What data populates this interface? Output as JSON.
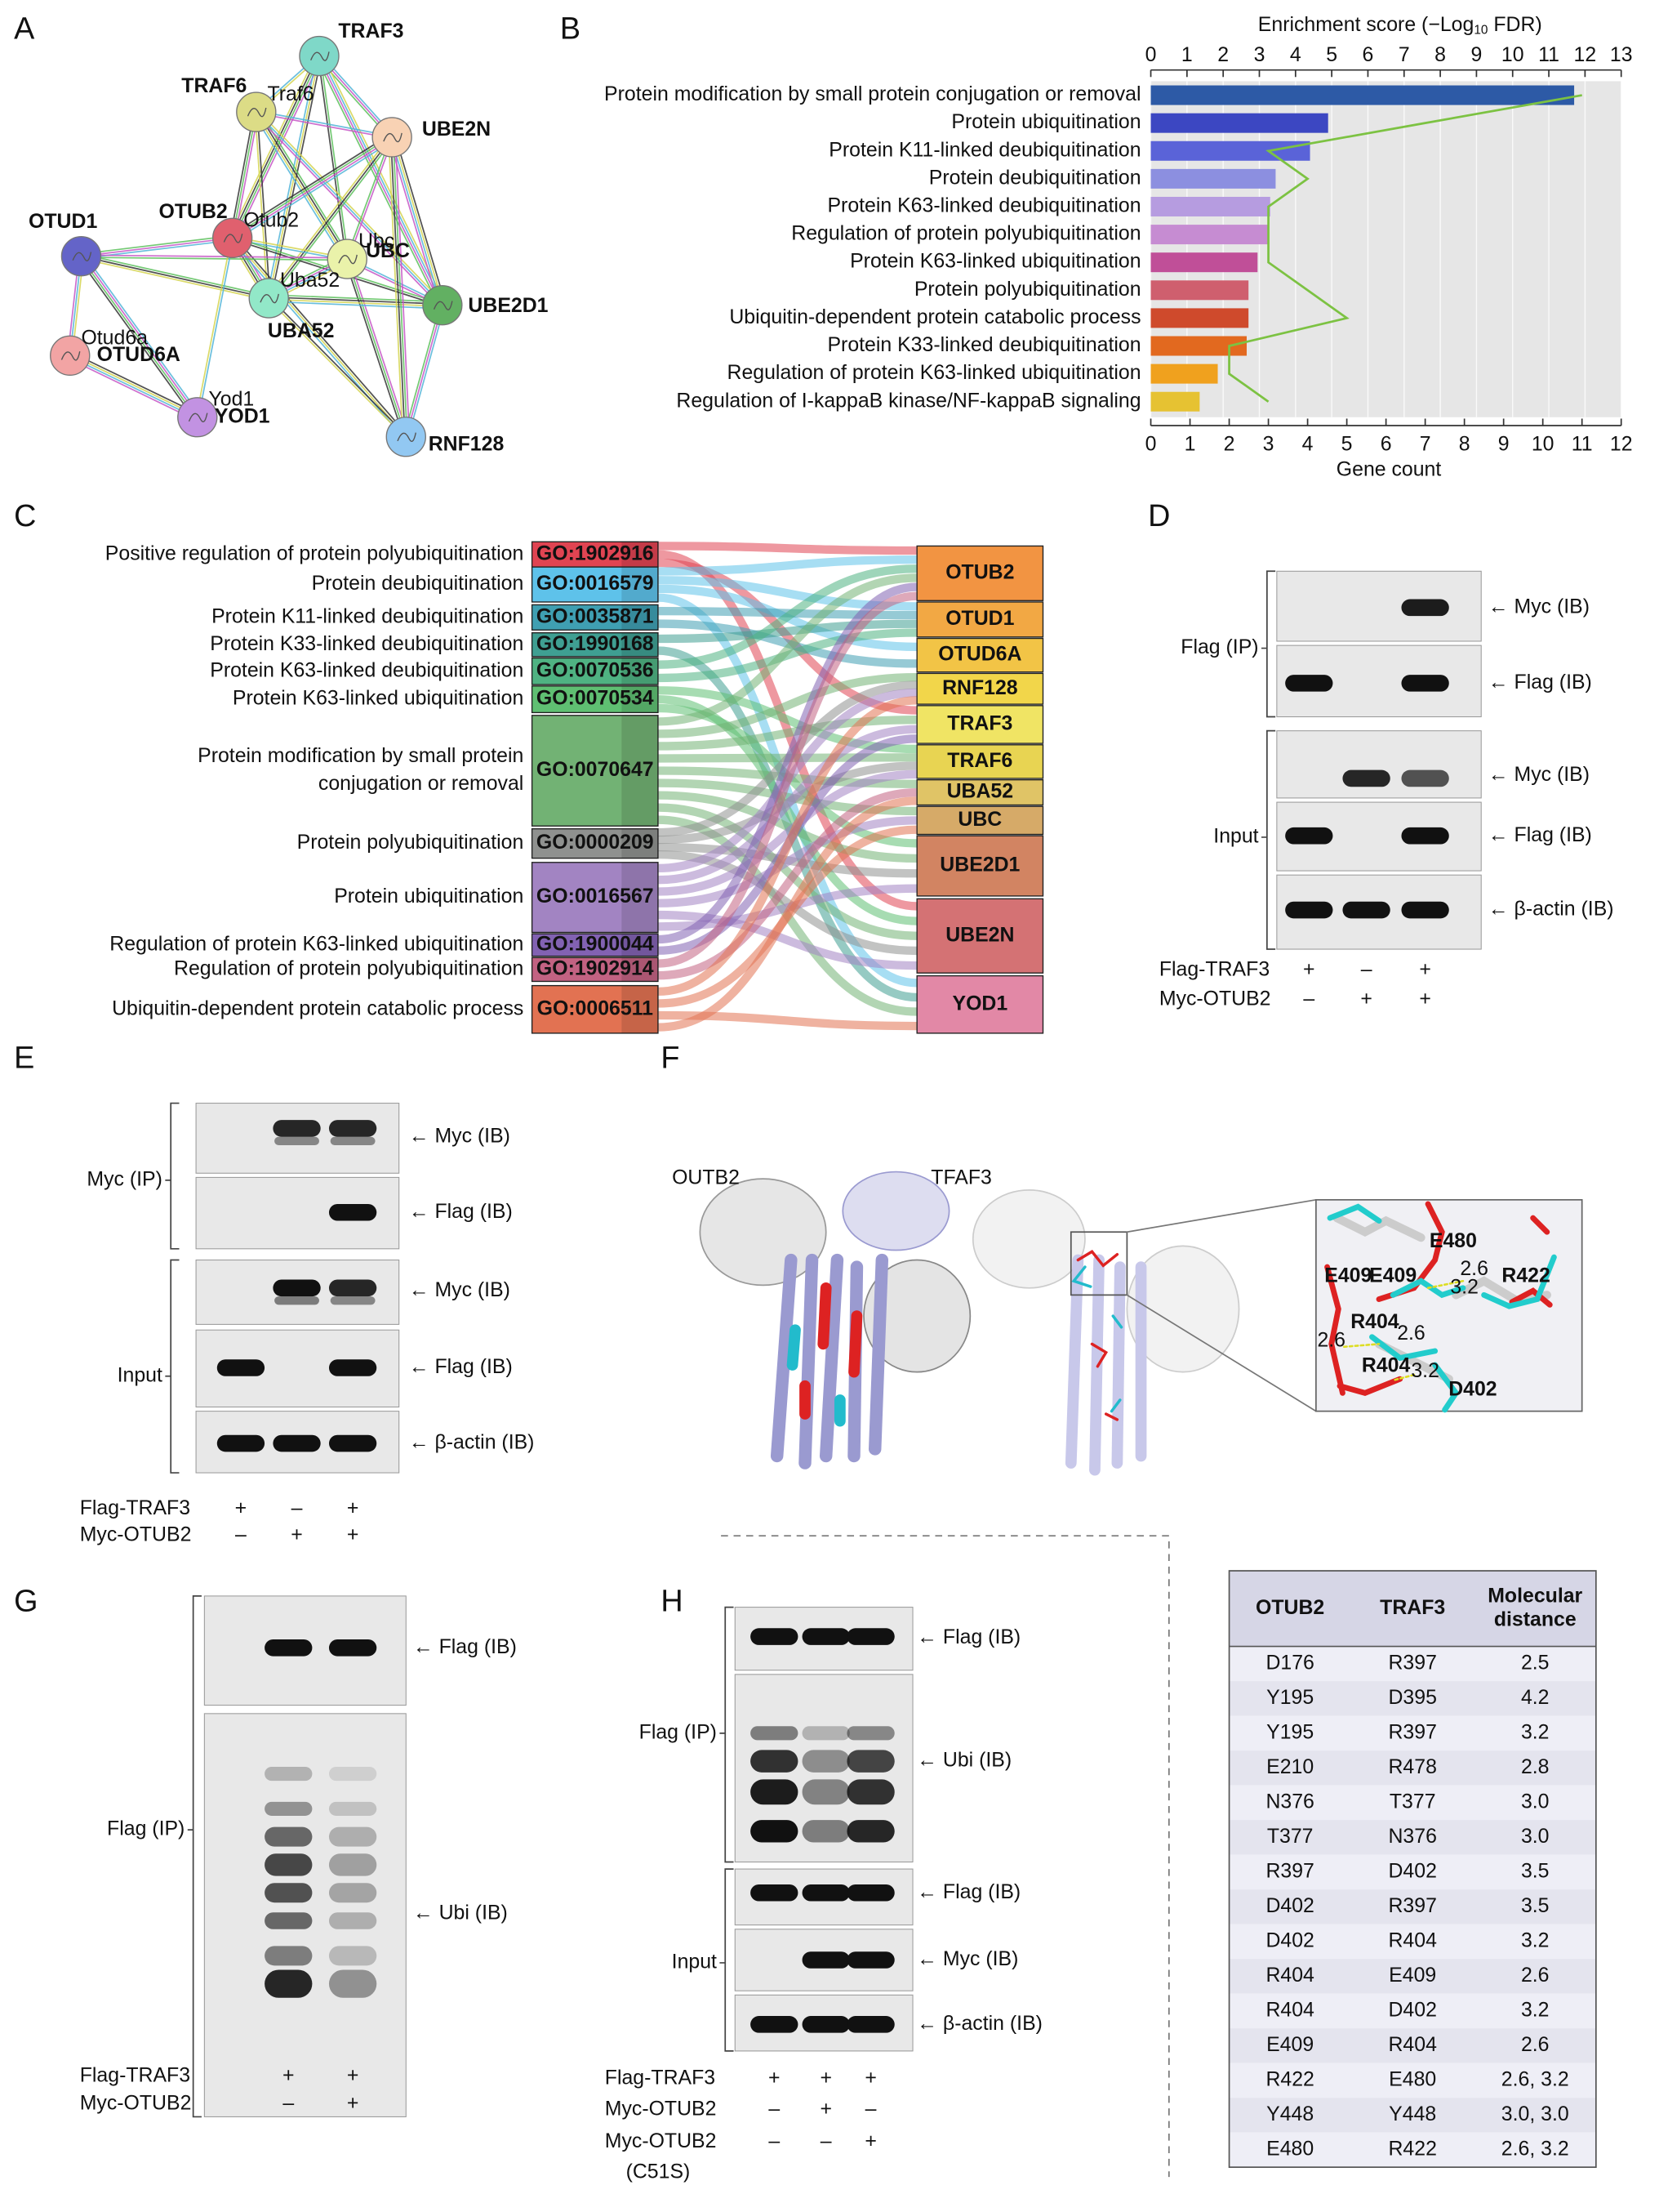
{
  "panel_labels": [
    "A",
    "B",
    "C",
    "D",
    "E",
    "F",
    "G",
    "H"
  ],
  "network": {
    "nodes": [
      {
        "label": "TRAF3"
      },
      {
        "label": "TRAF6",
        "tag": "Traf6"
      },
      {
        "label": "UBE2N"
      },
      {
        "label": "OTUB2",
        "tag": "Otub2"
      },
      {
        "label": "UBC",
        "tag": "Ubc"
      },
      {
        "label": "OTUD1"
      },
      {
        "label": "UBA52",
        "tag": "Uba52"
      },
      {
        "label": "UBE2D1"
      },
      {
        "label": "OTUD6A",
        "tag": "Otud6a"
      },
      {
        "label": "YOD1",
        "tag": "Yod1"
      },
      {
        "label": "RNF128"
      }
    ]
  },
  "chart_data": {
    "type": "bar",
    "orientation": "horizontal",
    "xlabel": [
      "Enrichment score (−Log",
      "10",
      " FDR)"
    ],
    "x2label": "Gene count",
    "categories": [
      "Protein modification by small protein conjugation or removal",
      "Protein ubiquitination",
      "Protein K11-linked deubiquitination",
      "Protein deubiquitination",
      "Protein K63-linked deubiquitination",
      "Regulation of protein polyubiquitination",
      "Protein K63-linked ubiquitination",
      "Protein polyubiquitination",
      "Ubiquitin-dependent protein catabolic process",
      "Protein K33-linked deubiquitination",
      "Regulation of protein K63-linked ubiquitination",
      "Regulation of I-kappaB kinase/NF-kappaB signaling"
    ],
    "values": [
      11.7,
      4.9,
      4.4,
      3.45,
      3.3,
      3.25,
      2.95,
      2.7,
      2.7,
      2.65,
      1.85,
      1.35
    ],
    "bar_colors": [
      "#2d5aa6",
      "#3c47c2",
      "#5a63d8",
      "#8c8fe0",
      "#b69ce0",
      "#c68cd2",
      "#c04f98",
      "#cf5f6e",
      "#cf4a2c",
      "#e2691f",
      "#f0a11e",
      "#e6c232"
    ],
    "gene_counts": [
      11,
      7,
      3,
      4,
      3,
      3,
      3,
      4,
      5,
      2,
      2,
      3
    ],
    "line_color": "#7cc242",
    "xlim": [
      0,
      13
    ],
    "xticks": [
      0,
      1,
      2,
      3,
      4,
      5,
      6,
      7,
      8,
      9,
      10,
      11,
      12,
      13
    ],
    "x2lim": [
      0,
      12
    ],
    "x2ticks": [
      0,
      1,
      2,
      3,
      4,
      5,
      6,
      7,
      8,
      9,
      10,
      11,
      12
    ],
    "grid": true
  },
  "sankey": {
    "terms": [
      {
        "description": [
          "Positive regulation of protein polyubiquitination"
        ],
        "id": "GO:1902916"
      },
      {
        "description": [
          "Protein deubiquitination"
        ],
        "id": "GO:0016579"
      },
      {
        "description": [
          "Protein K11-linked deubiquitination"
        ],
        "id": "GO:0035871"
      },
      {
        "description": [
          "Protein K33-linked deubiquitination"
        ],
        "id": "GO:1990168"
      },
      {
        "description": [
          "Protein K63-linked deubiquitination"
        ],
        "id": "GO:0070536"
      },
      {
        "description": [
          "Protein K63-linked ubiquitination"
        ],
        "id": "GO:0070534"
      },
      {
        "description": [
          "Protein modification by small protein",
          "conjugation or removal"
        ],
        "id": "GO:0070647"
      },
      {
        "description": [
          "Protein polyubiquitination"
        ],
        "id": "GO:0000209"
      },
      {
        "description": [
          "Protein ubiquitination"
        ],
        "id": "GO:0016567"
      },
      {
        "description": [
          "Regulation of protein K63-linked ubiquitination"
        ],
        "id": "GO:1900044"
      },
      {
        "description": [
          "Regulation of protein polyubiquitination"
        ],
        "id": "GO:1902914"
      },
      {
        "description": [
          "Ubiquitin-dependent protein catabolic process"
        ],
        "id": "GO:0006511"
      }
    ],
    "genes": [
      "OTUB2",
      "OTUD1",
      "OTUD6A",
      "RNF128",
      "TRAF3",
      "TRAF6",
      "UBA52",
      "UBC",
      "UBE2D1",
      "UBE2N",
      "YOD1"
    ]
  },
  "blot_D": {
    "bands": [
      "← Myc (IB)",
      "← Flag (IB)",
      "← Myc (IB)",
      "← Flag (IB)",
      "← β-actin (IB)"
    ],
    "groups": [
      "Flag (IP)",
      "Input"
    ],
    "conditions": [
      {
        "label": "Flag-TRAF3",
        "signs": [
          "+",
          "–",
          "+"
        ]
      },
      {
        "label": "Myc-OTUB2",
        "signs": [
          "–",
          "+",
          "+"
        ]
      }
    ]
  },
  "blot_E": {
    "bands": [
      "← Myc (IB)",
      "← Flag (IB)",
      "← Myc (IB)",
      "← Flag (IB)",
      "← β-actin (IB)"
    ],
    "groups": [
      "Myc (IP)",
      "Input"
    ],
    "conditions": [
      {
        "label": "Flag-TRAF3",
        "signs": [
          "+",
          "–",
          "+"
        ]
      },
      {
        "label": "Myc-OTUB2",
        "signs": [
          "–",
          "+",
          "+"
        ]
      }
    ]
  },
  "structure_F": {
    "labels": [
      "OUTB2",
      "TFAF3"
    ],
    "residues": [
      "E480",
      "E409",
      "E409",
      "R422",
      "R404",
      "D402",
      "R404"
    ],
    "distances": [
      "2.6",
      "3.2",
      "2.6",
      "2.6",
      "3.2"
    ]
  },
  "blot_G": {
    "bands": [
      "← Flag (IB)",
      "← Ubi (IB)"
    ],
    "groups": [
      "Flag (IP)"
    ],
    "conditions": [
      {
        "label": "Flag-TRAF3",
        "signs": [
          "+",
          "+"
        ]
      },
      {
        "label": "Myc-OTUB2",
        "signs": [
          "–",
          "+"
        ]
      }
    ]
  },
  "blot_H": {
    "bands": [
      "← Flag (IB)",
      "← Ubi (IB)",
      "← Flag (IB)",
      "← Myc (IB)",
      "← β-actin (IB)"
    ],
    "groups": [
      "Flag (IP)",
      "Input"
    ],
    "conditions": [
      {
        "label": "Flag-TRAF3",
        "signs": [
          "+",
          "+",
          "+"
        ]
      },
      {
        "label": "Myc-OTUB2",
        "signs": [
          "–",
          "+",
          "–"
        ]
      },
      {
        "label": "Myc-OTUB2",
        "note": "(C51S)",
        "signs": [
          "–",
          "–",
          "+"
        ]
      }
    ]
  },
  "table": {
    "header": [
      [
        "OTUB2"
      ],
      [
        "TRAF3"
      ],
      [
        "Molecular",
        "distance"
      ]
    ],
    "rows": [
      [
        "D176",
        "R397",
        "2.5"
      ],
      [
        "Y195",
        "D395",
        "4.2"
      ],
      [
        "Y195",
        "R397",
        "3.2"
      ],
      [
        "E210",
        "R478",
        "2.8"
      ],
      [
        "N376",
        "T377",
        "3.0"
      ],
      [
        "T377",
        "N376",
        "3.0"
      ],
      [
        "R397",
        "D402",
        "3.5"
      ],
      [
        "D402",
        "R397",
        "3.5"
      ],
      [
        "D402",
        "R404",
        "3.2"
      ],
      [
        "R404",
        "E409",
        "2.6"
      ],
      [
        "R404",
        "D402",
        "3.2"
      ],
      [
        "E409",
        "R404",
        "2.6"
      ],
      [
        "R422",
        "E480",
        "2.6, 3.2"
      ],
      [
        "Y448",
        "Y448",
        "3.0, 3.0"
      ],
      [
        "E480",
        "R422",
        "2.6, 3.2"
      ]
    ]
  }
}
